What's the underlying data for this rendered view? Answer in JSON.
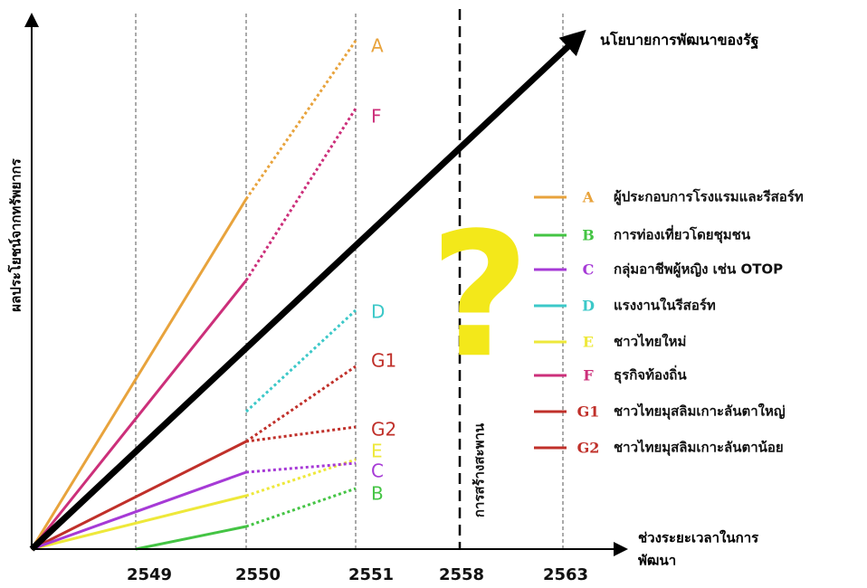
{
  "policy_label": "นโยบายการพัฒนาของรัฐ",
  "y_axis_label": "ผลประโยชน์จากทรัพยากร",
  "x_axis_label": [
    "ช่วงระยะเวลาในการ",
    "พัฒนา"
  ],
  "x_ticks": [
    "2549",
    "2550",
    "2551",
    "2558",
    "2563"
  ],
  "bridge_label": "การสร้างสะพาน",
  "question_mark": "?",
  "line_labels": [
    "A",
    "F",
    "D",
    "G1",
    "G2",
    "E",
    "C",
    "B"
  ],
  "legend": [
    {
      "key": "A",
      "label": "ผู้ประกอบการโรงแรมและรีสอร์ท"
    },
    {
      "key": "B",
      "label": "การท่องเที่ยวโดยชุมชน"
    },
    {
      "key": "C",
      "label": "กลุ่มอาชีพผู้หญิง เช่น OTOP"
    },
    {
      "key": "D",
      "label": "แรงงานในรีสอร์ท"
    },
    {
      "key": "E",
      "label": "ชาวไทยใหม่"
    },
    {
      "key": "F",
      "label": "ธุรกิจท้องถิ่น"
    },
    {
      "key": "G1",
      "label": "ชาวไทยมุสลิมเกาะลันตาใหญ่"
    },
    {
      "key": "G2",
      "label": "ชาวไทยมุสลิมเกาะลันตาน้อย"
    }
  ]
}
